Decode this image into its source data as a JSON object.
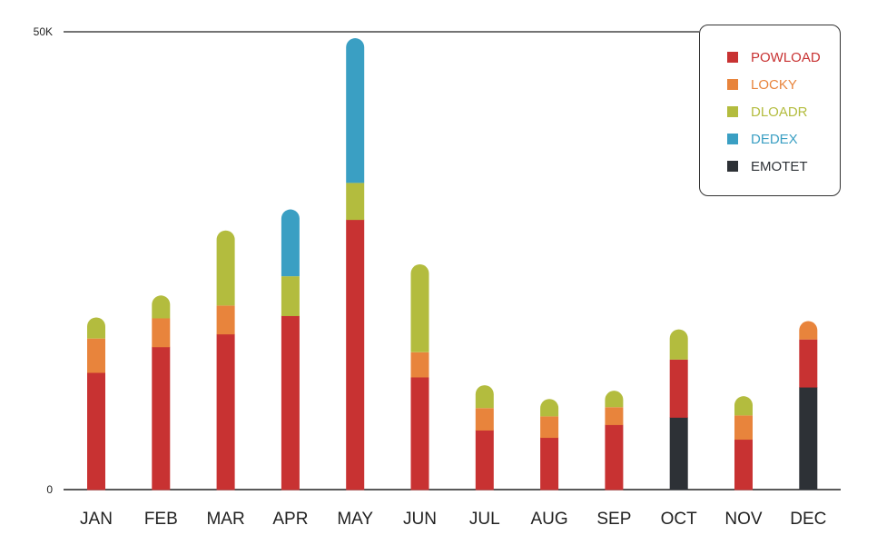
{
  "chart_data": {
    "type": "bar",
    "stacked": true,
    "title": "",
    "xlabel": "",
    "ylabel": "",
    "ylim": [
      0,
      50000
    ],
    "yticks": [
      {
        "value": 0,
        "label": "0"
      },
      {
        "value": 50000,
        "label": "50K"
      }
    ],
    "categories": [
      "JAN",
      "FEB",
      "MAR",
      "APR",
      "MAY",
      "JUN",
      "JUL",
      "AUG",
      "SEP",
      "OCT",
      "NOV",
      "DEC"
    ],
    "series": [
      {
        "name": "EMOTET",
        "color": "#2d3136",
        "values": [
          0,
          0,
          0,
          0,
          0,
          0,
          0,
          0,
          0,
          7900,
          0,
          11200
        ]
      },
      {
        "name": "POWLOAD",
        "color": "#c83232",
        "values": [
          12800,
          15600,
          17000,
          19000,
          29500,
          12300,
          6500,
          5700,
          7100,
          6300,
          5500,
          5200
        ]
      },
      {
        "name": "LOCKY",
        "color": "#e8843c",
        "values": [
          3700,
          3100,
          3100,
          0,
          0,
          2700,
          2400,
          2300,
          1900,
          0,
          2600,
          2000
        ]
      },
      {
        "name": "DLOADR",
        "color": "#b3bc3e",
        "values": [
          2300,
          2500,
          8200,
          4300,
          4000,
          9600,
          2500,
          1900,
          1800,
          3300,
          2100,
          0
        ]
      },
      {
        "name": "DEDEX",
        "color": "#3a9fc3",
        "values": [
          0,
          0,
          0,
          7300,
          15800,
          0,
          0,
          0,
          0,
          0,
          0,
          0
        ]
      }
    ],
    "legend_order": [
      "POWLOAD",
      "LOCKY",
      "DLOADR",
      "DEDEX",
      "EMOTET"
    ],
    "legend_position": "top-right",
    "grid": false
  }
}
